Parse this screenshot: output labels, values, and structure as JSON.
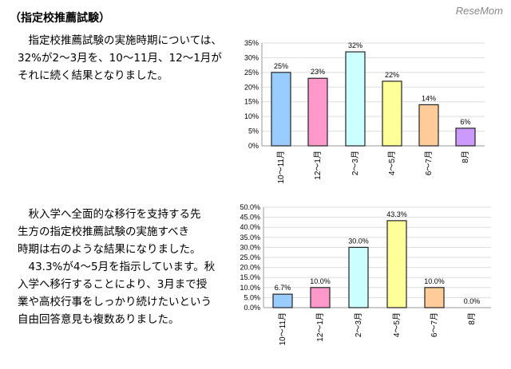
{
  "logo": "ReseMom",
  "heading": "（指定校推薦試験）",
  "paragraph1": [
    "　指定校推薦試験の実施時期については、",
    "32%が2～3月を、10～11月、12～1月が",
    "それに続く結果となりました。"
  ],
  "paragraph2": [
    "　秋入学へ全面的な移行を支持する先",
    "生方の指定校推薦試験の実施すべき",
    "時期は右のような結果になりました。",
    "　43.3%が4～5月を指示しています。秋",
    "入学へ移行することにより、3月まで授",
    "業や高校行事をしっかり続けたいという",
    "自由回答意見も複数ありました。"
  ],
  "chart_data": [
    {
      "type": "bar",
      "title": "",
      "categories": [
        "10～11月",
        "12～1月",
        "2～3月",
        "4～5月",
        "6～7月",
        "8月"
      ],
      "values": [
        25,
        23,
        32,
        22,
        14,
        6
      ],
      "value_labels": [
        "25%",
        "23%",
        "32%",
        "22%",
        "14%",
        "6%"
      ],
      "yticks": [
        "0%",
        "5%",
        "10%",
        "15%",
        "20%",
        "25%",
        "30%",
        "35%"
      ],
      "ylim": [
        0,
        35
      ],
      "ystep": 5,
      "grid": true,
      "colors": [
        "#99ccff",
        "#ff99cc",
        "#ccffff",
        "#ffff99",
        "#ffcc99",
        "#cc99ff"
      ]
    },
    {
      "type": "bar",
      "title": "",
      "categories": [
        "10～11月",
        "12～1月",
        "2～3月",
        "4～5月",
        "6～7月",
        "8月"
      ],
      "values": [
        6.7,
        10.0,
        30.0,
        43.3,
        10.0,
        0.0
      ],
      "value_labels": [
        "6.7%",
        "10.0%",
        "30.0%",
        "43.3%",
        "10.0%",
        "0.0%"
      ],
      "yticks": [
        "0.0%",
        "5.0%",
        "10.0%",
        "15.0%",
        "20.0%",
        "25.0%",
        "30.0%",
        "35.0%",
        "40.0%",
        "45.0%",
        "50.0%"
      ],
      "ylim": [
        0,
        50
      ],
      "ystep": 5,
      "grid": true,
      "colors": [
        "#99ccff",
        "#ff99cc",
        "#ccffff",
        "#ffff99",
        "#ffcc99",
        "#cc99ff"
      ]
    }
  ]
}
